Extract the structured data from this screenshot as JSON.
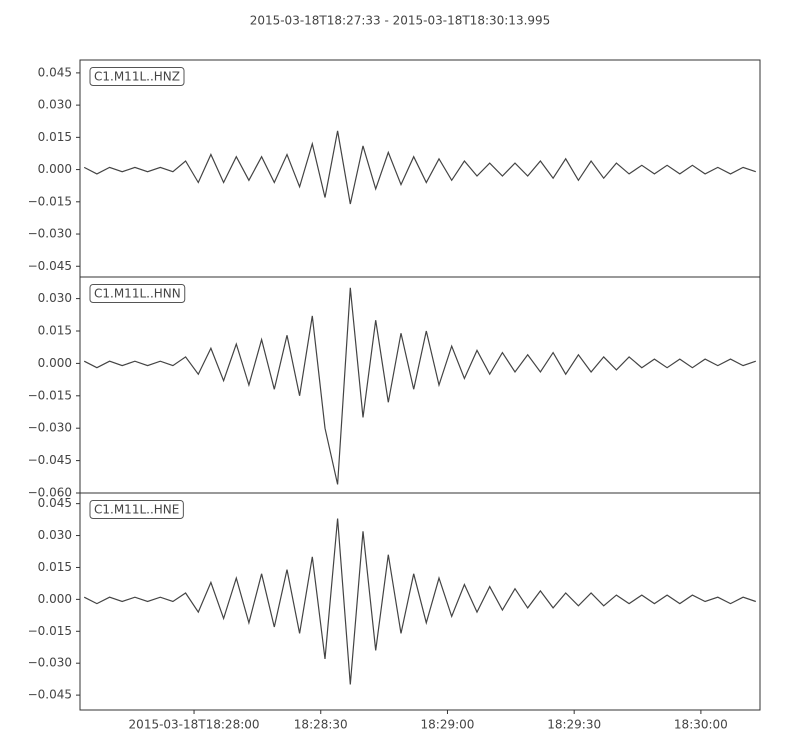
{
  "title": "2015-03-18T18:27:33  -  2015-03-18T18:30:13.995",
  "chart_data": [
    {
      "type": "line",
      "label": "C1.M11L..HNZ",
      "color": "#444444",
      "xlim": [
        "18:27:33",
        "18:30:13.995"
      ],
      "x": [
        "18:27:34",
        "18:27:37",
        "18:27:40",
        "18:27:43",
        "18:27:46",
        "18:27:49",
        "18:27:52",
        "18:27:55",
        "18:27:58",
        "18:28:01",
        "18:28:04",
        "18:28:07",
        "18:28:10",
        "18:28:13",
        "18:28:16",
        "18:28:19",
        "18:28:22",
        "18:28:25",
        "18:28:28",
        "18:28:31",
        "18:28:34",
        "18:28:37",
        "18:28:40",
        "18:28:43",
        "18:28:46",
        "18:28:49",
        "18:28:52",
        "18:28:55",
        "18:28:58",
        "18:29:01",
        "18:29:04",
        "18:29:07",
        "18:29:10",
        "18:29:13",
        "18:29:16",
        "18:29:19",
        "18:29:22",
        "18:29:25",
        "18:29:28",
        "18:29:31",
        "18:29:34",
        "18:29:37",
        "18:29:40",
        "18:29:43",
        "18:29:46",
        "18:29:49",
        "18:29:52",
        "18:29:55",
        "18:29:58",
        "18:30:01",
        "18:30:04",
        "18:30:07",
        "18:30:10",
        "18:30:13"
      ],
      "values": [
        0.001,
        -0.002,
        0.001,
        -0.001,
        0.001,
        -0.001,
        0.001,
        -0.001,
        0.004,
        -0.006,
        0.007,
        -0.006,
        0.006,
        -0.005,
        0.006,
        -0.006,
        0.007,
        -0.008,
        0.012,
        -0.013,
        0.018,
        -0.016,
        0.011,
        -0.009,
        0.008,
        -0.007,
        0.006,
        -0.006,
        0.005,
        -0.005,
        0.004,
        -0.003,
        0.003,
        -0.003,
        0.003,
        -0.003,
        0.004,
        -0.004,
        0.005,
        -0.005,
        0.004,
        -0.004,
        0.003,
        -0.002,
        0.002,
        -0.002,
        0.002,
        -0.002,
        0.002,
        -0.002,
        0.001,
        -0.002,
        0.001,
        -0.001
      ],
      "ylim": [
        -0.05,
        0.051
      ],
      "yticks": [
        {
          "value": 0.045,
          "label": "0.045"
        },
        {
          "value": 0.03,
          "label": "0.030"
        },
        {
          "value": 0.015,
          "label": "0.015"
        },
        {
          "value": 0,
          "label": "0.000"
        },
        {
          "value": -0.015,
          "label": "−0.015"
        },
        {
          "value": -0.03,
          "label": "−0.030"
        },
        {
          "value": -0.045,
          "label": "−0.045"
        }
      ]
    },
    {
      "type": "line",
      "label": "C1.M11L..HNN",
      "color": "#444444",
      "xlim": [
        "18:27:33",
        "18:30:13.995"
      ],
      "x": [
        "18:27:34",
        "18:27:37",
        "18:27:40",
        "18:27:43",
        "18:27:46",
        "18:27:49",
        "18:27:52",
        "18:27:55",
        "18:27:58",
        "18:28:01",
        "18:28:04",
        "18:28:07",
        "18:28:10",
        "18:28:13",
        "18:28:16",
        "18:28:19",
        "18:28:22",
        "18:28:25",
        "18:28:28",
        "18:28:31",
        "18:28:34",
        "18:28:37",
        "18:28:40",
        "18:28:43",
        "18:28:46",
        "18:28:49",
        "18:28:52",
        "18:28:55",
        "18:28:58",
        "18:29:01",
        "18:29:04",
        "18:29:07",
        "18:29:10",
        "18:29:13",
        "18:29:16",
        "18:29:19",
        "18:29:22",
        "18:29:25",
        "18:29:28",
        "18:29:31",
        "18:29:34",
        "18:29:37",
        "18:29:40",
        "18:29:43",
        "18:29:46",
        "18:29:49",
        "18:29:52",
        "18:29:55",
        "18:29:58",
        "18:30:01",
        "18:30:04",
        "18:30:07",
        "18:30:10",
        "18:30:13"
      ],
      "values": [
        0.001,
        -0.002,
        0.001,
        -0.001,
        0.001,
        -0.001,
        0.001,
        -0.001,
        0.003,
        -0.005,
        0.007,
        -0.008,
        0.009,
        -0.01,
        0.011,
        -0.012,
        0.013,
        -0.015,
        0.022,
        -0.03,
        -0.056,
        0.035,
        -0.025,
        0.02,
        -0.018,
        0.014,
        -0.012,
        0.015,
        -0.01,
        0.008,
        -0.007,
        0.006,
        -0.005,
        0.005,
        -0.004,
        0.004,
        -0.004,
        0.005,
        -0.005,
        0.004,
        -0.004,
        0.003,
        -0.003,
        0.003,
        -0.002,
        0.002,
        -0.002,
        0.002,
        -0.002,
        0.002,
        -0.001,
        0.002,
        -0.001,
        0.001
      ],
      "ylim": [
        -0.06,
        0.04
      ],
      "yticks": [
        {
          "value": 0.03,
          "label": "0.030"
        },
        {
          "value": 0.015,
          "label": "0.015"
        },
        {
          "value": 0,
          "label": "0.000"
        },
        {
          "value": -0.015,
          "label": "−0.015"
        },
        {
          "value": -0.03,
          "label": "−0.030"
        },
        {
          "value": -0.045,
          "label": "−0.045"
        },
        {
          "value": -0.06,
          "label": "−0.060"
        }
      ]
    },
    {
      "type": "line",
      "label": "C1.M11L..HNE",
      "color": "#444444",
      "xlim": [
        "18:27:33",
        "18:30:13.995"
      ],
      "x": [
        "18:27:34",
        "18:27:37",
        "18:27:40",
        "18:27:43",
        "18:27:46",
        "18:27:49",
        "18:27:52",
        "18:27:55",
        "18:27:58",
        "18:28:01",
        "18:28:04",
        "18:28:07",
        "18:28:10",
        "18:28:13",
        "18:28:16",
        "18:28:19",
        "18:28:22",
        "18:28:25",
        "18:28:28",
        "18:28:31",
        "18:28:34",
        "18:28:37",
        "18:28:40",
        "18:28:43",
        "18:28:46",
        "18:28:49",
        "18:28:52",
        "18:28:55",
        "18:28:58",
        "18:29:01",
        "18:29:04",
        "18:29:07",
        "18:29:10",
        "18:29:13",
        "18:29:16",
        "18:29:19",
        "18:29:22",
        "18:29:25",
        "18:29:28",
        "18:29:31",
        "18:29:34",
        "18:29:37",
        "18:29:40",
        "18:29:43",
        "18:29:46",
        "18:29:49",
        "18:29:52",
        "18:29:55",
        "18:29:58",
        "18:30:01",
        "18:30:04",
        "18:30:07",
        "18:30:10",
        "18:30:13"
      ],
      "values": [
        0.001,
        -0.002,
        0.001,
        -0.001,
        0.001,
        -0.001,
        0.001,
        -0.001,
        0.003,
        -0.006,
        0.008,
        -0.009,
        0.01,
        -0.011,
        0.012,
        -0.013,
        0.014,
        -0.016,
        0.02,
        -0.028,
        0.038,
        -0.04,
        0.032,
        -0.024,
        0.021,
        -0.016,
        0.012,
        -0.011,
        0.01,
        -0.008,
        0.007,
        -0.006,
        0.006,
        -0.005,
        0.005,
        -0.004,
        0.004,
        -0.004,
        0.003,
        -0.003,
        0.003,
        -0.003,
        0.002,
        -0.002,
        0.002,
        -0.002,
        0.002,
        -0.002,
        0.002,
        -0.001,
        0.001,
        -0.002,
        0.001,
        -0.001
      ],
      "ylim": [
        -0.052,
        0.05
      ],
      "yticks": [
        {
          "value": 0.045,
          "label": "0.045"
        },
        {
          "value": 0.03,
          "label": "0.030"
        },
        {
          "value": 0.015,
          "label": "0.015"
        },
        {
          "value": 0,
          "label": "0.000"
        },
        {
          "value": -0.015,
          "label": "−0.015"
        },
        {
          "value": -0.03,
          "label": "−0.030"
        },
        {
          "value": -0.045,
          "label": "−0.045"
        }
      ],
      "xticks": [
        {
          "value": "18:28:00",
          "label": "2015-03-18T18:28:00"
        },
        {
          "value": "18:28:30",
          "label": "18:28:30"
        },
        {
          "value": "18:29:00",
          "label": "18:29:00"
        },
        {
          "value": "18:29:30",
          "label": "18:29:30"
        },
        {
          "value": "18:30:00",
          "label": "18:30:00"
        }
      ]
    }
  ]
}
